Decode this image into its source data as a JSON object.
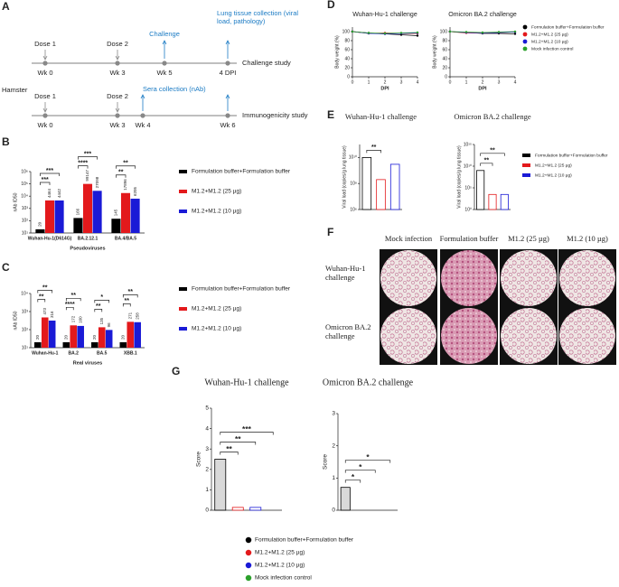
{
  "panel_a": {
    "letter": "A",
    "species": "Hamster",
    "rows": [
      {
        "name": "Challenge study",
        "events": [
          {
            "label": "Dose 1",
            "week": "Wk 0"
          },
          {
            "label": "Dose 2",
            "week": "Wk 3"
          },
          {
            "label": "Challenge",
            "week": "Wk 5",
            "color": "#1b7bc4"
          },
          {
            "label": "Lung tissue collection (viral load, pathology)",
            "week": "4 DPI",
            "color": "#1b7bc4"
          }
        ]
      },
      {
        "name": "Immunogenicity study",
        "annotation": "Sera collection (nAb)",
        "events": [
          {
            "label": "Dose 1",
            "week": "Wk 0"
          },
          {
            "label": "Dose 2",
            "week": "Wk 3"
          },
          {
            "week": "Wk 4"
          },
          {
            "week": "Wk 6"
          }
        ]
      }
    ]
  },
  "panel_f": {
    "letter": "F",
    "columns": [
      "Mock infection",
      "Formulation buffer",
      "M1.2 (25 µg)",
      "M1.2 (10 µg)"
    ],
    "rows": [
      "Wuhan-Hu-1 challenge",
      "Omicron BA.2 challenge"
    ]
  },
  "chart_data": [
    {
      "type": "bar",
      "panel": "B",
      "log": true,
      "data_labels": true,
      "categories": [
        "Wuhan-Hu-1(D614G)",
        "BA.2.12.1",
        "BA.4/BA.5"
      ],
      "x_label": "Pseudoviruses",
      "y_label": "nAb ID50",
      "ylim": [
        10,
        1000000
      ],
      "yticks": [
        {
          "value": 10,
          "label": "10¹"
        },
        {
          "value": 100,
          "label": "10²"
        },
        {
          "value": 1000,
          "label": "10³"
        },
        {
          "value": 10000,
          "label": "10⁴"
        },
        {
          "value": 100000,
          "label": "10⁵"
        },
        {
          "value": 1000000,
          "label": "10⁶"
        }
      ],
      "series": [
        {
          "name": "Formulation buffer+Formulation buffer",
          "color": "#000000",
          "values": [
            20,
            166,
            145
          ]
        },
        {
          "name": "M1.2+M1.2 (25 µg)",
          "color": "#e3191c",
          "values": [
            4464,
            99147,
            17896
          ]
        },
        {
          "name": "M1.2+M1.2 (10 µg)",
          "color": "#1a1ad6",
          "values": [
            4442,
            27098,
            6205
          ]
        }
      ],
      "annotations": [
        [
          "***",
          "***"
        ],
        [
          "****",
          "***"
        ],
        [
          "**",
          "**"
        ]
      ],
      "legend": "right"
    },
    {
      "type": "bar",
      "panel": "C",
      "log": true,
      "data_labels": true,
      "categories": [
        "Wuhan-Hu-1",
        "BA.2",
        "BA.5",
        "XBB.1"
      ],
      "x_label": "Real viruses",
      "y_label": "nAb ID50",
      "ylim": [
        10,
        10000
      ],
      "yticks": [
        {
          "value": 10,
          "label": "10¹"
        },
        {
          "value": 100,
          "label": "10²"
        },
        {
          "value": 1000,
          "label": "10³"
        },
        {
          "value": 10000,
          "label": "10⁴"
        }
      ],
      "series": [
        {
          "name": "Formulation buffer+Formulation buffer",
          "color": "#000000",
          "values": [
            20,
            20,
            20,
            20
          ]
        },
        {
          "name": "M1.2+M1.2 (25 µg)",
          "color": "#e3191c",
          "values": [
            473,
            172,
            135,
            271
          ]
        },
        {
          "name": "M1.2+M1.2 (10 µg)",
          "color": "#1a1ad6",
          "values": [
            316,
            160,
            96,
            258
          ]
        }
      ],
      "annotations": [
        [
          "**",
          "**"
        ],
        [
          "****",
          "**"
        ],
        [
          "**",
          "*"
        ],
        [
          "**",
          "**"
        ]
      ],
      "legend": "right"
    },
    {
      "type": "line",
      "panel": "D",
      "title": "Wuhan-Hu-1 challenge",
      "x_label": "DPI",
      "y_label": "Body weight (%)",
      "x": [
        0,
        1,
        2,
        3,
        4
      ],
      "xlim": [
        0,
        4
      ],
      "xticks": [
        0,
        1,
        2,
        3,
        4
      ],
      "ylim": [
        0,
        110
      ],
      "yticks": [
        0,
        20,
        40,
        60,
        80,
        100
      ],
      "series": [
        {
          "color": "#000000",
          "values": [
            100,
            97,
            95,
            93,
            91
          ]
        },
        {
          "color": "#e3191c",
          "values": [
            100,
            96,
            97,
            96,
            96
          ]
        },
        {
          "color": "#1a1ad6",
          "values": [
            100,
            96,
            95,
            96,
            97
          ]
        },
        {
          "color": "#2ca02c",
          "values": [
            100,
            97,
            96,
            97,
            98
          ]
        }
      ]
    },
    {
      "type": "line",
      "title": "Omicron BA.2 challenge",
      "x_label": "DPI",
      "y_label": "Body weight (%)",
      "x": [
        0,
        1,
        2,
        3,
        4
      ],
      "xlim": [
        0,
        4
      ],
      "xticks": [
        0,
        1,
        2,
        3,
        4
      ],
      "ylim": [
        0,
        110
      ],
      "yticks": [
        0,
        20,
        40,
        60,
        80,
        100
      ],
      "series": [
        {
          "name": "Formulation buffer+Formulation buffer",
          "color": "#000000",
          "values": [
            100,
            98,
            96,
            96,
            95
          ]
        },
        {
          "name": "M1.2+M1.2 (25 µg)",
          "color": "#e3191c",
          "values": [
            100,
            97,
            97,
            98,
            99
          ]
        },
        {
          "name": "M1.2+M1.2 (10 µg)",
          "color": "#1a1ad6",
          "values": [
            100,
            98,
            97,
            98,
            99
          ]
        },
        {
          "name": "Mock infection control",
          "color": "#2ca02c",
          "values": [
            100,
            99,
            98,
            99,
            100
          ]
        }
      ],
      "legend": "right"
    },
    {
      "type": "bar",
      "panel": "E",
      "log": true,
      "bar_style": "outline",
      "title": "Wuhan-Hu-1 challenge",
      "y_label": "Viral load (copies/g lung tissue)",
      "ylim": [
        1000000,
        100000000000
      ],
      "yticks": [
        {
          "value": 1000000,
          "label": "10⁶"
        },
        {
          "value": 100000000,
          "label": "10⁸"
        },
        {
          "value": 10000000000,
          "label": "10¹⁰"
        }
      ],
      "series": [
        {
          "color": "#000000",
          "values": [
            10000000000
          ]
        },
        {
          "color": "#e3191c",
          "values": [
            200000000
          ]
        },
        {
          "color": "#1a1ad6",
          "values": [
            3000000000
          ]
        }
      ],
      "annotations": [
        "**"
      ]
    },
    {
      "type": "bar",
      "log": true,
      "bar_style": "outline",
      "title": "Omicron BA.2 challenge",
      "y_label": "Viral load (copies/g lung tissue)",
      "ylim": [
        1,
        1000000000000000
      ],
      "yticks": [
        {
          "value": 1,
          "label": "10⁰"
        },
        {
          "value": 100000,
          "label": "10⁵"
        },
        {
          "value": 10000000000,
          "label": "10¹⁰"
        },
        {
          "value": 1000000000000000,
          "label": "10¹⁵"
        }
      ],
      "series": [
        {
          "name": "Formulation buffer+Formulation buffer",
          "color": "#000000",
          "values": [
            1000000000
          ]
        },
        {
          "name": "M1.2+M1.2 (25 µg)",
          "color": "#e3191c",
          "values": [
            3000
          ]
        },
        {
          "name": "M1.2+M1.2 (10 µg)",
          "color": "#1a1ad6",
          "values": [
            3000
          ]
        }
      ],
      "annotations": [
        "**",
        "**"
      ],
      "legend": "right"
    },
    {
      "type": "bar",
      "panel": "G",
      "bar_style": "outline",
      "title": "Wuhan-Hu-1 challenge",
      "y_label": "Score",
      "ylim": [
        0,
        5
      ],
      "yticks": [
        0,
        1,
        2,
        3,
        4,
        5
      ],
      "series": [
        {
          "color": "#000000",
          "values": [
            2.5
          ]
        },
        {
          "color": "#e3191c",
          "values": [
            0.14
          ]
        },
        {
          "color": "#1a1ad6",
          "values": [
            0.14
          ]
        },
        {
          "color": "#2ca02c",
          "values": [
            0
          ]
        }
      ],
      "annotations": [
        "**",
        "**",
        "***"
      ]
    },
    {
      "type": "bar",
      "bar_style": "outline",
      "title": "Omicron BA.2 challenge",
      "y_label": "Score",
      "ylim": [
        0,
        3
      ],
      "yticks": [
        0,
        1,
        2,
        3
      ],
      "series": [
        {
          "name": "Formulation buffer+Formulation buffer",
          "color": "#000000",
          "values": [
            0.71
          ]
        },
        {
          "name": "M1.2+M1.2 (25 µg)",
          "color": "#e3191c",
          "values": [
            0
          ]
        },
        {
          "name": "M1.2+M1.2 (10 µg)",
          "color": "#1a1ad6",
          "values": [
            0
          ]
        },
        {
          "name": "Mock infection control",
          "color": "#2ca02c",
          "values": [
            0
          ]
        }
      ],
      "annotations": [
        "*",
        "*",
        "*"
      ],
      "legend": "bottom"
    }
  ]
}
